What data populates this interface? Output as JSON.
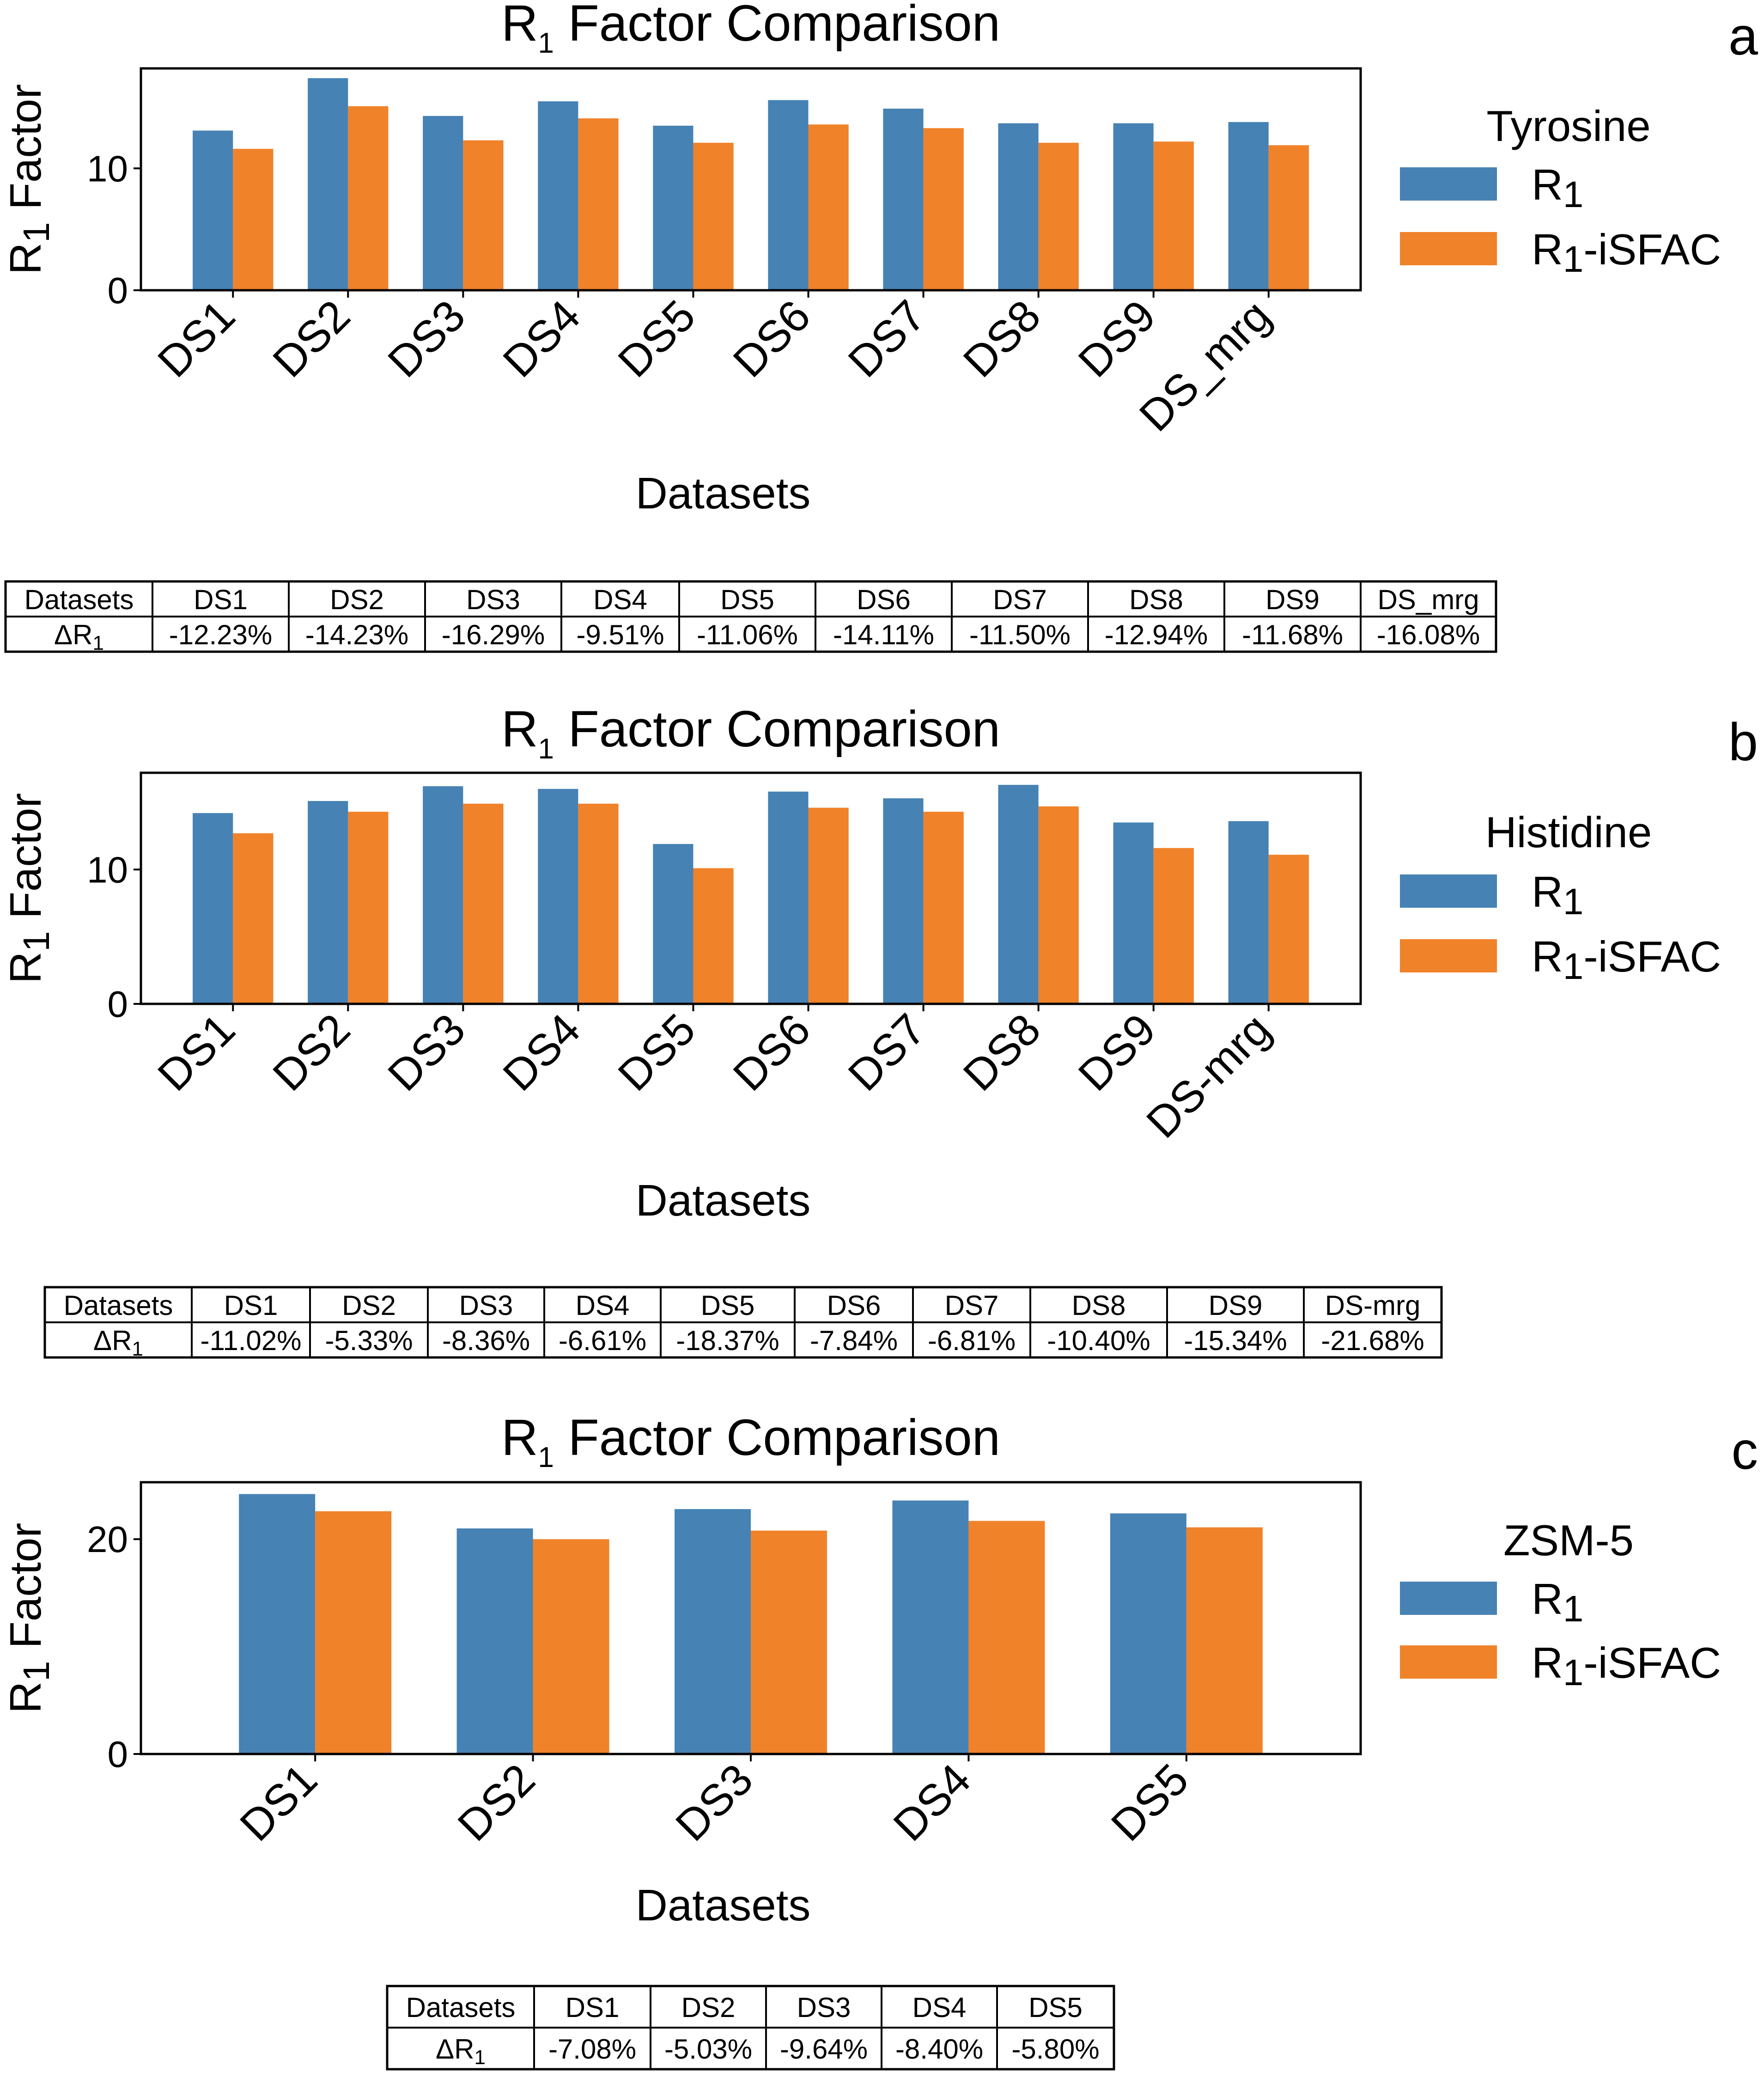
{
  "colors": {
    "r1": "#4682b4",
    "r1_isfac": "#f0822a",
    "axis": "#000000"
  },
  "chart_data": [
    {
      "type": "bar",
      "panel": "a",
      "title_main": "R",
      "title_sub": "1",
      "title_rest": " Factor Comparison",
      "xlabel": "Datasets",
      "ylabel_main": "R",
      "ylabel_sub": "1",
      "ylabel_rest": " Factor",
      "ylim": [
        0,
        18.2
      ],
      "yticks": [
        0,
        10
      ],
      "categories": [
        "DS1",
        "DS2",
        "DS3",
        "DS4",
        "DS5",
        "DS6",
        "DS7",
        "DS8",
        "DS9",
        "DS_mrg"
      ],
      "legend_title": "Tyrosine",
      "series": [
        {
          "name": "R1",
          "label_main": "R",
          "label_sub": "1",
          "label_rest": "",
          "color": "#4682b4",
          "values": [
            13.1,
            17.4,
            14.3,
            15.5,
            13.5,
            15.6,
            14.9,
            13.7,
            13.7,
            13.8
          ]
        },
        {
          "name": "R1-iSFAC",
          "label_main": "R",
          "label_sub": "1",
          "label_rest": "-iSFAC",
          "color": "#f0822a",
          "values": [
            11.6,
            15.1,
            12.3,
            14.1,
            12.1,
            13.6,
            13.3,
            12.1,
            12.2,
            11.9
          ]
        }
      ],
      "table": {
        "header": [
          "Datasets",
          "DS1",
          "DS2",
          "DS3",
          "DS4",
          "DS5",
          "DS6",
          "DS7",
          "DS8",
          "DS9",
          "DS_mrg"
        ],
        "row_label_main": "ΔR",
        "row_label_sub": "1",
        "row": [
          "-12.23%",
          "-14.23%",
          "-16.29%",
          "-9.51%",
          "-11.06%",
          "-14.11%",
          "-11.50%",
          "-12.94%",
          "-11.68%",
          "-16.08%"
        ]
      }
    },
    {
      "type": "bar",
      "panel": "b",
      "title_main": "R",
      "title_sub": "1",
      "title_rest": " Factor Comparison",
      "xlabel": "Datasets",
      "ylabel_main": "R",
      "ylabel_sub": "1",
      "ylabel_rest": " Factor",
      "ylim": [
        0,
        17.2
      ],
      "yticks": [
        0,
        10
      ],
      "categories": [
        "DS1",
        "DS2",
        "DS3",
        "DS4",
        "DS5",
        "DS6",
        "DS7",
        "DS8",
        "DS9",
        "DS-mrg"
      ],
      "legend_title": "Histidine",
      "series": [
        {
          "name": "R1",
          "label_main": "R",
          "label_sub": "1",
          "label_rest": "",
          "color": "#4682b4",
          "values": [
            14.2,
            15.1,
            16.2,
            16.0,
            11.9,
            15.8,
            15.3,
            16.3,
            13.5,
            13.6
          ]
        },
        {
          "name": "R1-iSFAC",
          "label_main": "R",
          "label_sub": "1",
          "label_rest": "-iSFAC",
          "color": "#f0822a",
          "values": [
            12.7,
            14.3,
            14.9,
            14.9,
            10.1,
            14.6,
            14.3,
            14.7,
            11.6,
            11.1
          ]
        }
      ],
      "table": {
        "header": [
          "Datasets",
          "DS1",
          "DS2",
          "DS3",
          "DS4",
          "DS5",
          "DS6",
          "DS7",
          "DS8",
          "DS9",
          "DS-mrg"
        ],
        "row_label_main": "ΔR",
        "row_label_sub": "1",
        "row": [
          "-11.02%",
          "-5.33%",
          "-8.36%",
          "-6.61%",
          "-18.37%",
          "-7.84%",
          "-6.81%",
          "-10.40%",
          "-15.34%",
          "-21.68%"
        ]
      }
    },
    {
      "type": "bar",
      "panel": "c",
      "title_main": "R",
      "title_sub": "1",
      "title_rest": " Factor Comparison",
      "xlabel": "Datasets",
      "ylabel_main": "R",
      "ylabel_sub": "1",
      "ylabel_rest": " Factor",
      "ylim": [
        0,
        25.3
      ],
      "yticks": [
        0,
        20
      ],
      "categories": [
        "DS1",
        "DS2",
        "DS3",
        "DS4",
        "DS5"
      ],
      "legend_title": "ZSM-5",
      "series": [
        {
          "name": "R1",
          "label_main": "R",
          "label_sub": "1",
          "label_rest": "",
          "color": "#4682b4",
          "values": [
            24.2,
            21.0,
            22.8,
            23.6,
            22.4
          ]
        },
        {
          "name": "R1-iSFAC",
          "label_main": "R",
          "label_sub": "1",
          "label_rest": "-iSFAC",
          "color": "#f0822a",
          "values": [
            22.6,
            20.0,
            20.8,
            21.7,
            21.1
          ]
        }
      ],
      "table": {
        "header": [
          "Datasets",
          "DS1",
          "DS2",
          "DS3",
          "DS4",
          "DS5"
        ],
        "row_label_main": "ΔR",
        "row_label_sub": "1",
        "row": [
          "-7.08%",
          "-5.03%",
          "-9.64%",
          "-8.40%",
          "-5.80%"
        ]
      }
    }
  ]
}
